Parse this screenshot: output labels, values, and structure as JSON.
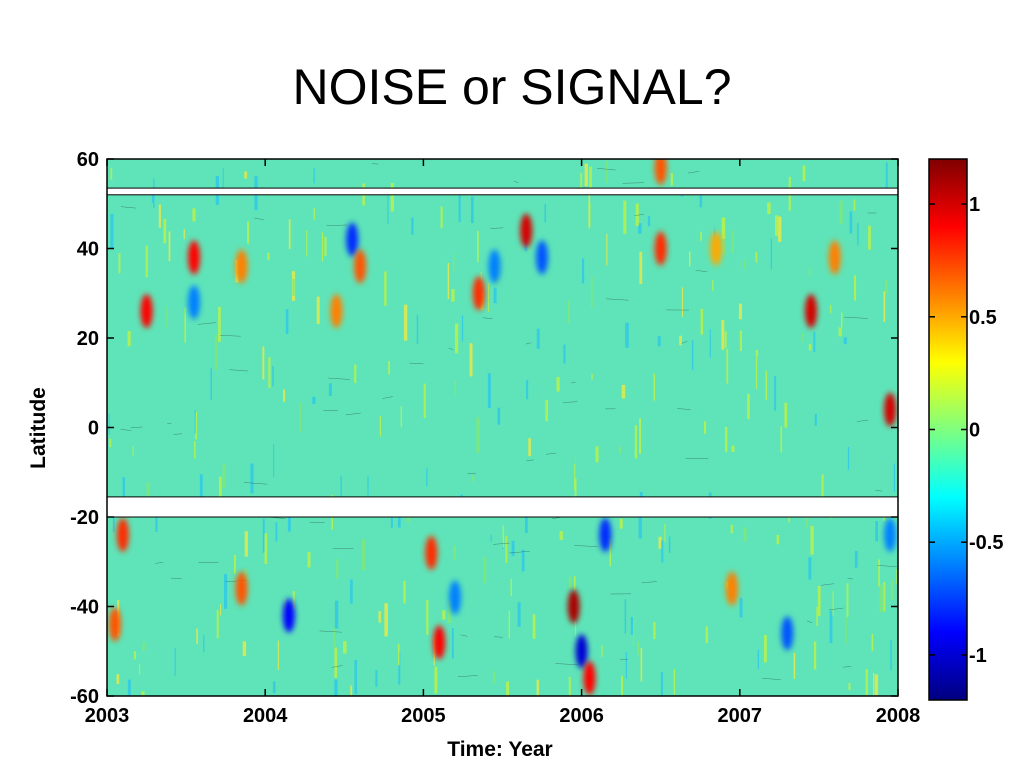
{
  "slide": {
    "title": "NOISE or SIGNAL?"
  },
  "chart_data": {
    "type": "heatmap",
    "title": "NOISE or SIGNAL?",
    "xlabel": "Time: Year",
    "ylabel": "Latitude",
    "xlim": [
      2003,
      2008
    ],
    "ylim": [
      -60,
      60
    ],
    "x_ticks": [
      2003,
      2004,
      2005,
      2006,
      2007,
      2008
    ],
    "x_tick_labels": [
      "2003",
      "2004",
      "2005",
      "2006",
      "2007",
      "2008"
    ],
    "y_ticks": [
      60,
      40,
      20,
      0,
      -20,
      -40,
      -60
    ],
    "y_tick_labels": [
      "60",
      "40",
      "20",
      "0",
      "-20",
      "-40",
      "-60"
    ],
    "gaps_latitude": [
      [
        52,
        53.5
      ],
      [
        -20,
        -15.5
      ]
    ],
    "colorbar": {
      "colormap": "jet",
      "range": [
        -1.2,
        1.2
      ],
      "ticks": [
        1,
        0.5,
        0,
        -0.5,
        -1
      ],
      "tick_labels": [
        "1",
        "0.5",
        "0",
        "-0.5",
        "-1"
      ]
    },
    "features": [
      {
        "x": 2003.25,
        "y": 26,
        "value": 0.9
      },
      {
        "x": 2003.55,
        "y": 38,
        "value": 0.9
      },
      {
        "x": 2003.55,
        "y": 28,
        "value": -0.6
      },
      {
        "x": 2003.85,
        "y": 36,
        "value": 0.6
      },
      {
        "x": 2004.55,
        "y": 42,
        "value": -0.8
      },
      {
        "x": 2004.6,
        "y": 36,
        "value": 0.7
      },
      {
        "x": 2004.45,
        "y": 26,
        "value": 0.6
      },
      {
        "x": 2005.35,
        "y": 30,
        "value": 0.8
      },
      {
        "x": 2005.45,
        "y": 36,
        "value": -0.6
      },
      {
        "x": 2005.65,
        "y": 44,
        "value": 1.0
      },
      {
        "x": 2005.75,
        "y": 38,
        "value": -0.7
      },
      {
        "x": 2006.5,
        "y": 40,
        "value": 0.8
      },
      {
        "x": 2006.5,
        "y": 58,
        "value": 0.7
      },
      {
        "x": 2006.85,
        "y": 40,
        "value": 0.5
      },
      {
        "x": 2007.45,
        "y": 26,
        "value": 1.0
      },
      {
        "x": 2007.6,
        "y": 38,
        "value": 0.6
      },
      {
        "x": 2007.95,
        "y": 4,
        "value": 1.0
      },
      {
        "x": 2003.1,
        "y": -24,
        "value": 0.8
      },
      {
        "x": 2003.05,
        "y": -44,
        "value": 0.7
      },
      {
        "x": 2003.85,
        "y": -36,
        "value": 0.7
      },
      {
        "x": 2004.15,
        "y": -42,
        "value": -0.9
      },
      {
        "x": 2005.05,
        "y": -28,
        "value": 0.8
      },
      {
        "x": 2005.1,
        "y": -48,
        "value": 0.9
      },
      {
        "x": 2005.2,
        "y": -38,
        "value": -0.6
      },
      {
        "x": 2005.95,
        "y": -40,
        "value": 1.1
      },
      {
        "x": 2006.0,
        "y": -50,
        "value": -1.0
      },
      {
        "x": 2006.05,
        "y": -56,
        "value": 0.9
      },
      {
        "x": 2006.15,
        "y": -24,
        "value": -0.8
      },
      {
        "x": 2006.95,
        "y": -36,
        "value": 0.6
      },
      {
        "x": 2007.3,
        "y": -46,
        "value": -0.7
      },
      {
        "x": 2007.95,
        "y": -24,
        "value": -0.6
      }
    ]
  }
}
